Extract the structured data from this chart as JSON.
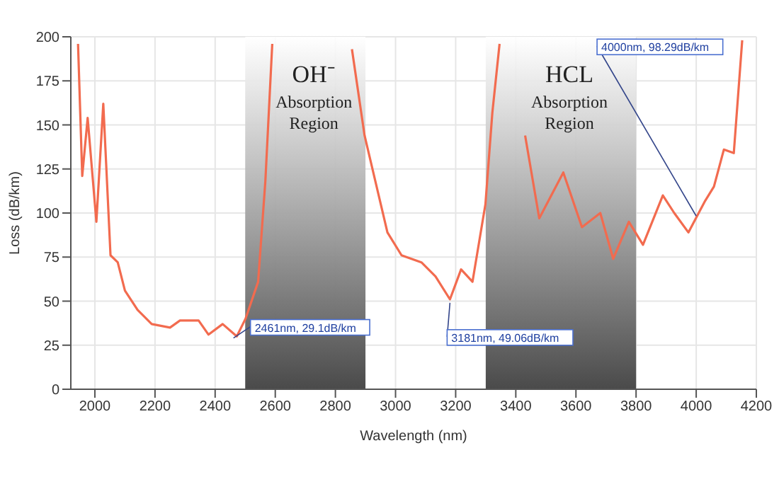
{
  "chart_data": {
    "type": "line",
    "xlabel": "Wavelength (nm)",
    "ylabel": "Loss (dB/km)",
    "xlim": [
      1920,
      4200
    ],
    "xticks": [
      2000,
      2200,
      2400,
      2600,
      2800,
      3000,
      3200,
      3400,
      3600,
      3800,
      4000,
      4200
    ],
    "ylim": [
      0,
      200
    ],
    "yticks": [
      0,
      25,
      50,
      75,
      100,
      125,
      150,
      175,
      200
    ],
    "grid": true,
    "x": [
      1944,
      1958,
      1976,
      2005,
      2028,
      2052,
      2076,
      2100,
      2142,
      2189,
      2250,
      2283,
      2345,
      2378,
      2425,
      2472,
      2501,
      2543,
      2567,
      2590,
      2720,
      2855,
      2897,
      2944,
      2973,
      3020,
      3086,
      3133,
      3181,
      3218,
      3256,
      3299,
      3322,
      3346,
      3390,
      3431,
      3478,
      3558,
      3620,
      3681,
      3724,
      3776,
      3823,
      3889,
      3927,
      3974,
      4030,
      4059,
      4092,
      4125,
      4153
    ],
    "series": [
      {
        "color": "#f26b4f",
        "values": [
          196,
          121,
          154,
          95,
          162,
          76,
          72,
          56,
          45,
          37,
          35,
          39,
          39,
          31,
          37,
          30,
          40,
          61,
          118,
          196,
          null,
          193,
          144,
          110,
          89,
          76,
          72,
          64,
          51,
          68,
          61,
          105,
          157,
          196,
          null,
          144,
          97,
          123,
          92,
          100,
          74,
          95,
          82,
          110,
          100,
          89,
          107,
          115,
          136,
          134,
          198
        ]
      }
    ],
    "bands": [
      {
        "axis": "x",
        "from": 2500,
        "to": 2900,
        "label": "OH⁻ Absorption Region",
        "color": "#4a4a4a"
      },
      {
        "axis": "x",
        "from": 3300,
        "to": 3800,
        "label": "HCL Absorption Region",
        "color": "#4a4a4a"
      }
    ],
    "annotations": [
      {
        "text": "2461nm, 29.1dB/km",
        "x": 2461,
        "y": 29.1
      },
      {
        "text": "3181nm, 49.06dB/km",
        "x": 3181,
        "y": 49.06
      },
      {
        "text": "4000nm, 98.29dB/km",
        "x": 4000,
        "y": 98.29
      }
    ]
  }
}
